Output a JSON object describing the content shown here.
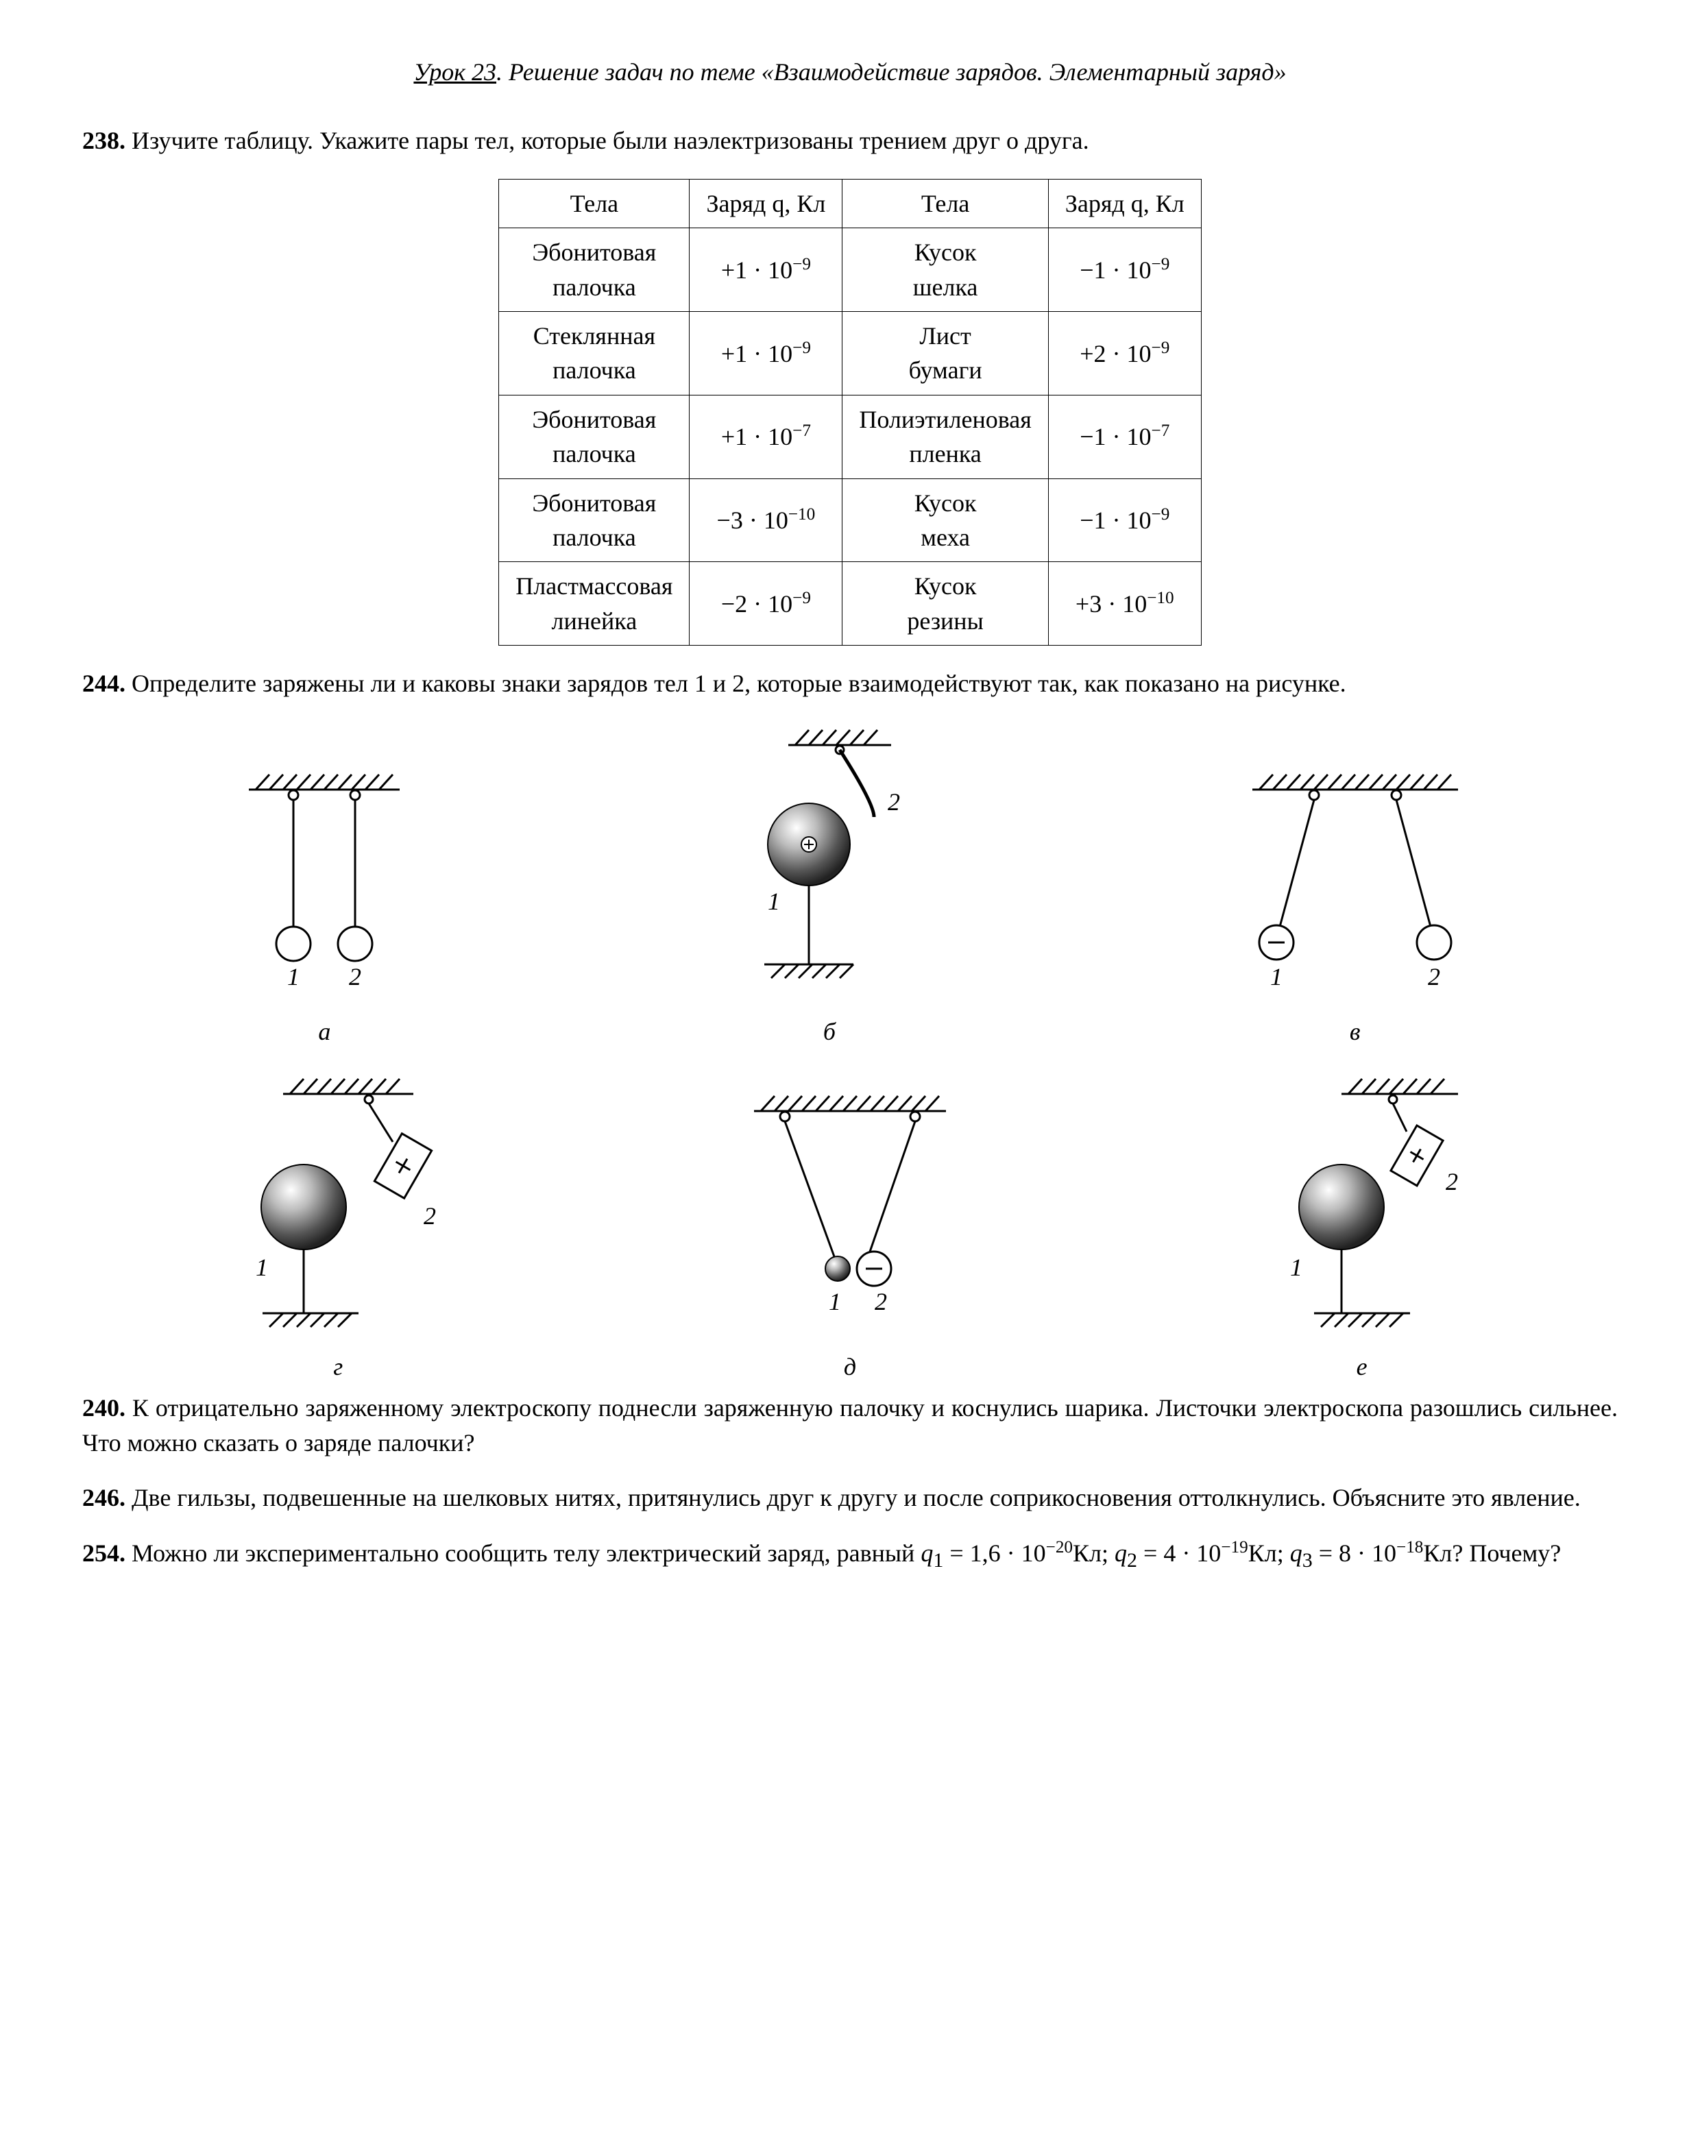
{
  "lesson": {
    "underline": "Урок 23",
    "rest": ". Решение задач по теме «Взаимодействие зарядов. Элементарный заряд»"
  },
  "p238": {
    "num": "238.",
    "text": " Изучите таблицу. Укажите пары тел, которые были наэлектризованы трением друг о друга.",
    "table": {
      "headers": [
        "Тела",
        "Заряд q, Кл",
        "Тела",
        "Заряд q, Кл"
      ],
      "rows": [
        {
          "b1": "Эбонитовая палочка",
          "q1": "+1 · 10",
          "e1": "−9",
          "b2": "Кусок шелка",
          "q2": "−1 · 10",
          "e2": "−9"
        },
        {
          "b1": "Стеклянная палочка",
          "q1": "+1 · 10",
          "e1": "−9",
          "b2": "Лист бумаги",
          "q2": "+2 · 10",
          "e2": "−9"
        },
        {
          "b1": "Эбонитовая палочка",
          "q1": "+1 · 10",
          "e1": "−7",
          "b2": "Полиэтиленовая пленка",
          "q2": "−1 · 10",
          "e2": "−7"
        },
        {
          "b1": "Эбонитовая палочка",
          "q1": "−3 · 10",
          "e1": "−10",
          "b2": "Кусок меха",
          "q2": "−1 · 10",
          "e2": "−9"
        },
        {
          "b1": "Пластмассовая линейка",
          "q1": "−2 · 10",
          "e1": "−9",
          "b2": "Кусок резины",
          "q2": "+3 · 10",
          "e2": "−10"
        }
      ]
    }
  },
  "p244": {
    "num": "244.",
    "text": " Определите заряжены ли и каковы знаки зарядов тел 1 и 2, которые взаимодействуют так, как показано на рисунке.",
    "labels": {
      "a": "а",
      "b": "б",
      "v": "в",
      "g": "г",
      "d": "д",
      "e": "е",
      "one": "1",
      "two": "2"
    }
  },
  "p240": {
    "num": "240.",
    "text": " К отрицательно заряженному электроскопу поднесли заряженную палочку и коснулись шарика. Листочки электроскопа разошлись сильнее. Что можно сказать о заряде палочки?"
  },
  "p246": {
    "num": "246.",
    "text": " Две гильзы, подвешенные на шелковых нитях, притянулись друг к другу и после соприкосновения оттолкнулись. Объясните это явление."
  },
  "p254": {
    "num": "254.",
    "pre": " Можно ли экспериментально сообщить телу электрический заряд, равный ",
    "q1l": "q",
    "q1s": "1",
    "q1eq": " = 1,6 · 10",
    "q1e": "−20",
    "q1u": "Кл; ",
    "q2l": "q",
    "q2s": "2",
    "q2eq": " = 4 · 10",
    "q2e": "−19",
    "q2u": "Кл; ",
    "q3l": "q",
    "q3s": "3",
    "q3eq": " = 8 · 10",
    "q3e": "−18",
    "q3u": "Кл? Почему?"
  },
  "style": {
    "stroke": "#000000",
    "strokeWidth": 3,
    "hatchWidth": 3,
    "ballGradStops": [
      "#ffffff",
      "#bbbbbb",
      "#555555",
      "#222222"
    ],
    "fontSize": 36
  }
}
